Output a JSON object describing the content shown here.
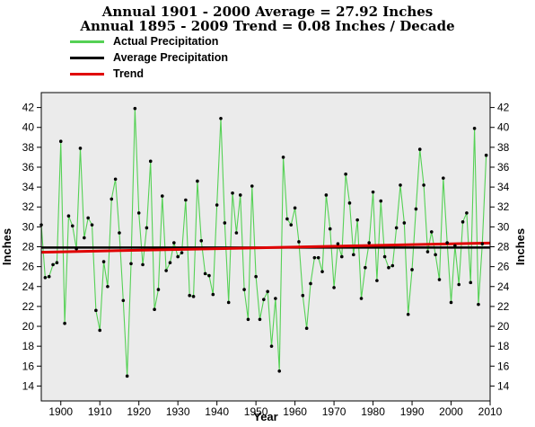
{
  "colors": {
    "actual": "#55d155",
    "average": "#000000",
    "trend": "#e00000",
    "plot_bg": "#ebebeb",
    "points": "#000000"
  },
  "chart_data": {
    "type": "line",
    "title": "Annual 1901 - 2000 Average = 27.92 Inches",
    "subtitle": "Annual 1895 - 2009 Trend = 0.08 Inches / Decade",
    "xlabel": "Year",
    "ylabel": "Inches",
    "xlim": [
      1895,
      2010
    ],
    "ylim": [
      12.5,
      43.5
    ],
    "grid": false,
    "legend": "top-left",
    "x_ticks": [
      1900,
      1910,
      1920,
      1930,
      1940,
      1950,
      1960,
      1970,
      1980,
      1990,
      2000,
      2010
    ],
    "y_ticks": [
      14,
      16,
      18,
      20,
      22,
      24,
      26,
      28,
      30,
      32,
      34,
      36,
      38,
      40,
      42
    ],
    "series": [
      {
        "name": "Actual Precipitation",
        "x": [
          1895,
          1896,
          1897,
          1898,
          1899,
          1900,
          1901,
          1902,
          1903,
          1904,
          1905,
          1906,
          1907,
          1908,
          1909,
          1910,
          1911,
          1912,
          1913,
          1914,
          1915,
          1916,
          1917,
          1918,
          1919,
          1920,
          1921,
          1922,
          1923,
          1924,
          1925,
          1926,
          1927,
          1928,
          1929,
          1930,
          1931,
          1932,
          1933,
          1934,
          1935,
          1936,
          1937,
          1938,
          1939,
          1940,
          1941,
          1942,
          1943,
          1944,
          1945,
          1946,
          1947,
          1948,
          1949,
          1950,
          1951,
          1952,
          1953,
          1954,
          1955,
          1956,
          1957,
          1958,
          1959,
          1960,
          1961,
          1962,
          1963,
          1964,
          1965,
          1966,
          1967,
          1968,
          1969,
          1970,
          1971,
          1972,
          1973,
          1974,
          1975,
          1976,
          1977,
          1978,
          1979,
          1980,
          1981,
          1982,
          1983,
          1984,
          1985,
          1986,
          1987,
          1988,
          1989,
          1990,
          1991,
          1992,
          1993,
          1994,
          1995,
          1996,
          1997,
          1998,
          1999,
          2000,
          2001,
          2002,
          2003,
          2004,
          2005,
          2006,
          2007,
          2008,
          2009
        ],
        "values": [
          30.2,
          24.9,
          25.0,
          26.2,
          26.4,
          38.6,
          20.3,
          31.1,
          30.1,
          27.8,
          37.9,
          28.9,
          30.9,
          30.2,
          21.6,
          19.6,
          26.5,
          24.0,
          32.8,
          34.8,
          29.4,
          22.6,
          15.0,
          26.3,
          41.9,
          31.4,
          26.2,
          29.9,
          36.6,
          21.7,
          23.7,
          33.1,
          25.6,
          26.4,
          28.4,
          27.0,
          27.4,
          32.7,
          23.1,
          23.0,
          34.6,
          28.6,
          25.3,
          25.1,
          23.2,
          32.2,
          40.9,
          30.4,
          22.4,
          33.4,
          29.4,
          33.2,
          23.7,
          20.7,
          34.1,
          25.0,
          20.7,
          22.7,
          23.5,
          18.0,
          22.8,
          15.5,
          37.0,
          30.8,
          30.2,
          31.9,
          28.5,
          23.1,
          19.8,
          24.3,
          26.9,
          26.9,
          25.5,
          33.2,
          29.8,
          23.9,
          28.3,
          27.0,
          35.3,
          32.4,
          27.2,
          30.7,
          22.8,
          25.9,
          28.4,
          33.5,
          24.6,
          32.6,
          27.0,
          25.9,
          26.1,
          29.9,
          34.2,
          30.4,
          21.2,
          25.7,
          31.8,
          37.8,
          34.2,
          27.5,
          29.5,
          27.2,
          24.7,
          34.9,
          28.4,
          22.4,
          28.1,
          24.2,
          30.5,
          31.4,
          24.4,
          39.9,
          22.2,
          28.3,
          37.2
        ]
      },
      {
        "name": "Average Precipitation",
        "x": [
          1895,
          2010
        ],
        "values": [
          27.92,
          27.92
        ]
      },
      {
        "name": "Trend",
        "x": [
          1895,
          2010
        ],
        "values": [
          27.45,
          28.37
        ]
      }
    ]
  }
}
